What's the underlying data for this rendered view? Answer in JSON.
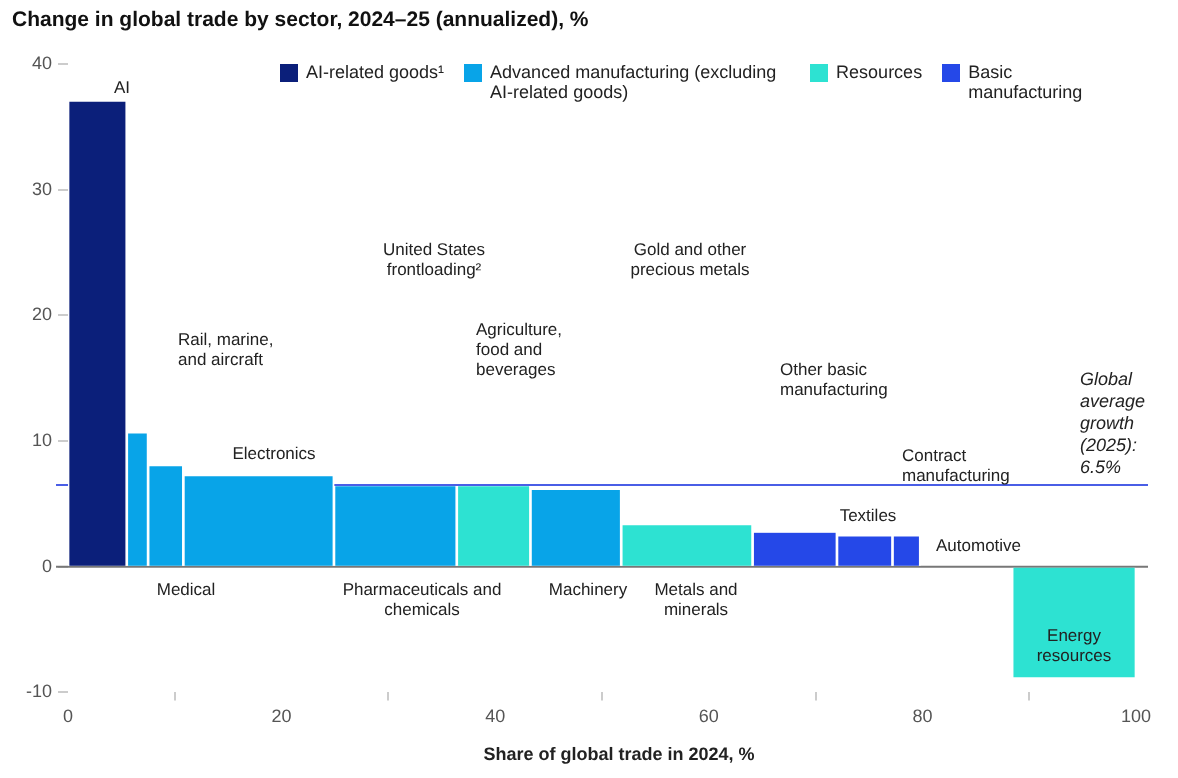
{
  "chart_data": {
    "type": "histogram",
    "title": "Change in global trade by sector, 2024–25 (annualized), %",
    "xlabel": "Share of global trade in 2024, %",
    "bins": [
      0,
      5.5,
      7.5,
      10.8,
      24.9,
      36.4,
      43.3,
      51.8,
      64.1,
      72,
      77.2,
      79.8,
      88.4,
      100
    ],
    "series": [
      {
        "name": "AI-related goods¹",
        "color": "#0b1f7a",
        "values": [
          37,
          null,
          null,
          null,
          null,
          null,
          null,
          null,
          null,
          null,
          null,
          null,
          null
        ]
      },
      {
        "name": "Advanced manufacturing (excluding AI-related goods)",
        "color": "#08a4e8",
        "values": [
          null,
          10.6,
          8,
          7.2,
          6.4,
          null,
          6.1,
          null,
          null,
          null,
          null,
          null,
          null
        ]
      },
      {
        "name": "Resources",
        "color": "#2de2d2",
        "values": [
          null,
          null,
          null,
          null,
          null,
          6.4,
          null,
          3.3,
          null,
          null,
          null,
          null,
          -8.8
        ]
      },
      {
        "name": "Basic manufacturing",
        "color": "#2548e8",
        "values": [
          null,
          null,
          null,
          null,
          null,
          null,
          null,
          null,
          2.7,
          2.4,
          2.4,
          0,
          null
        ]
      }
    ],
    "xlim": [
      0,
      100
    ],
    "xticks": [
      0,
      20,
      40,
      60,
      80,
      100
    ],
    "ylim": [
      -10,
      40
    ],
    "yticks": [
      -10,
      0,
      10,
      20,
      30,
      40
    ],
    "legend": "top",
    "ref_lines": [
      {
        "axis": "y",
        "value": 0,
        "color": "#777777"
      },
      {
        "axis": "y",
        "value": 6.5,
        "label": "Global average growth (2025): 6.5%",
        "color": "#4a5ee6"
      }
    ],
    "annotations": [
      "AI",
      "Rail, marine, and aircraft",
      "Medical",
      "Electronics",
      "Pharmaceuticals and chemicals",
      "United States frontloading²",
      "Agriculture, food and beverages",
      "Machinery",
      "Gold and other precious metals",
      "Metals and minerals",
      "Other basic manufacturing",
      "Textiles",
      "Contract manufacturing",
      "Automotive",
      "Energy resources"
    ]
  }
}
